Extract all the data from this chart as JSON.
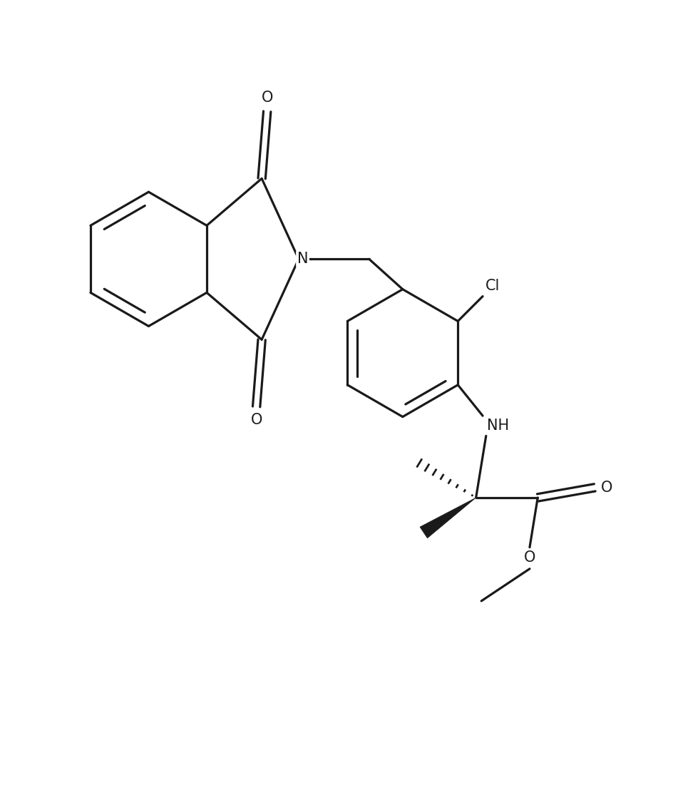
{
  "bg": "#ffffff",
  "lc": "#1a1a1a",
  "lw": 2.3,
  "figsize": [
    9.44,
    11.22
  ],
  "dpi": 100,
  "xlim": [
    0,
    10
  ],
  "ylim": [
    0,
    11.8
  ],
  "label_N": "N",
  "label_O": "O",
  "label_Cl": "Cl",
  "label_NH": "NH",
  "fs": 15
}
